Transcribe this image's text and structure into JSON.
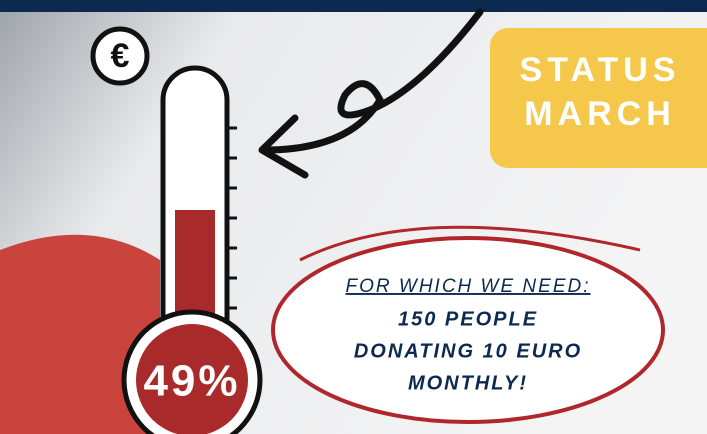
{
  "icon": {
    "label": "€"
  },
  "status": {
    "line1": "STATUS",
    "line2": "MARCH"
  },
  "thermometer": {
    "label": "49%"
  },
  "note": {
    "heading": "FOR WHICH WE NEED:",
    "lines": [
      "150 PEOPLE",
      "DONATING 10 EURO",
      "MONTHLY!"
    ]
  }
}
